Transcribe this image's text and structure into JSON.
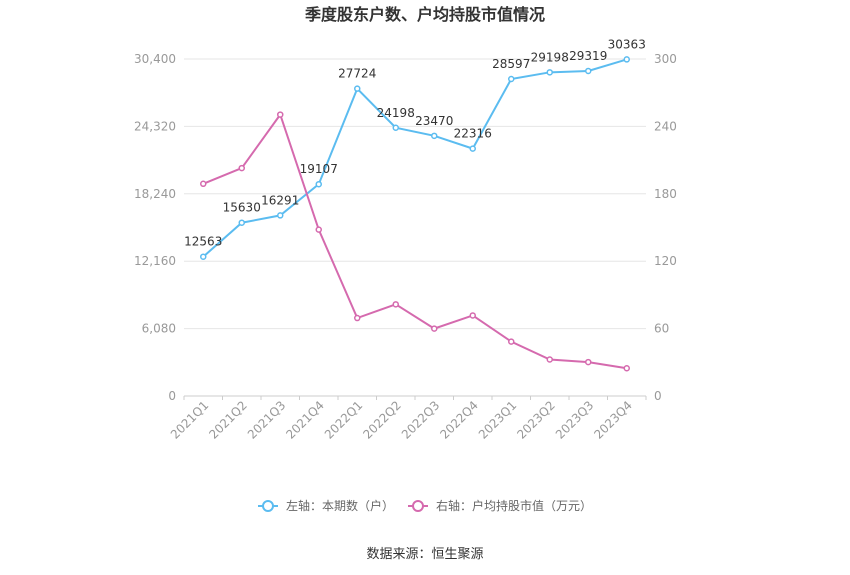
{
  "chart_data": {
    "type": "line",
    "title": "季度股东户数、户均持股市值情况",
    "categories": [
      "2021Q1",
      "2021Q2",
      "2021Q3",
      "2021Q4",
      "2022Q1",
      "2022Q2",
      "2022Q3",
      "2022Q4",
      "2023Q1",
      "2023Q2",
      "2023Q3",
      "2023Q4"
    ],
    "left_axis": {
      "min": 0,
      "max": 30400,
      "ticks": [
        "0",
        "6,080",
        "12,160",
        "18,240",
        "24,320",
        "30,400"
      ],
      "tick_values": [
        0,
        6080,
        12160,
        18240,
        24320,
        30400
      ]
    },
    "right_axis": {
      "min": 0,
      "max": 300,
      "ticks": [
        "0",
        "60",
        "120",
        "180",
        "240",
        "300"
      ],
      "tick_values": [
        0,
        60,
        120,
        180,
        240,
        300
      ]
    },
    "series": [
      {
        "name": "左轴：本期数（户）",
        "axis": "left",
        "color": "#5bbcf0",
        "values": [
          12563,
          15630,
          16291,
          19107,
          27724,
          24198,
          23470,
          22316,
          28597,
          29198,
          29319,
          30363
        ],
        "labels": [
          "12563",
          "15630",
          "16291",
          "19107",
          "27724",
          "24198",
          "23470",
          "22316",
          "28597",
          "29198",
          "29319",
          "30363"
        ]
      },
      {
        "name": "右轴：户均持股市值（万元）",
        "axis": "right",
        "color": "#d56aae",
        "values": [
          188.9,
          202.9,
          250.5,
          148.1,
          69.4,
          81.6,
          60.0,
          71.7,
          48.4,
          32.5,
          30.2,
          24.7
        ]
      }
    ],
    "grid": true,
    "legend": "bottom",
    "source": "数据来源：恒生聚源"
  }
}
